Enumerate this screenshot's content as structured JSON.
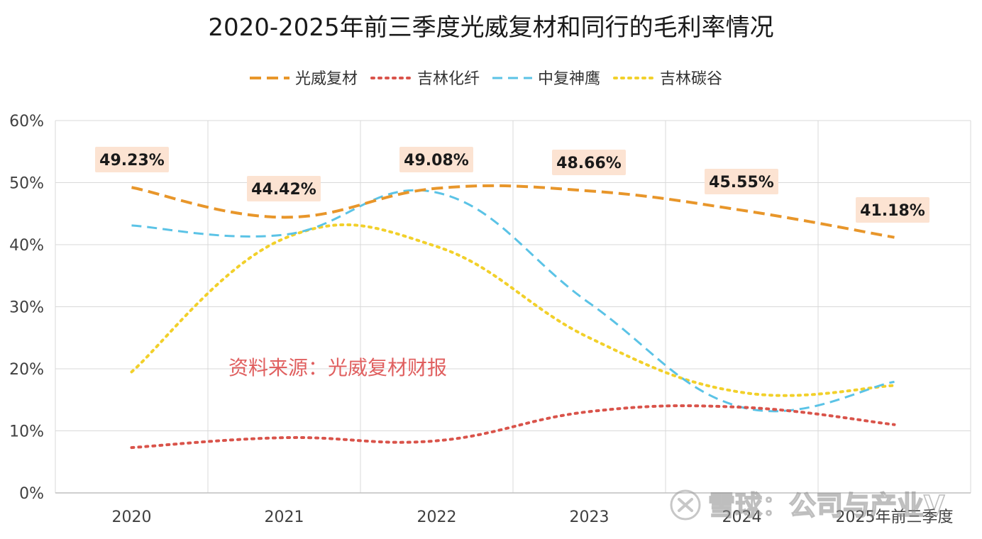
{
  "chart_data": {
    "type": "line",
    "title": "2020-2025年前三季度光威复材和同行的毛利率情况",
    "categories": [
      "2020",
      "2021",
      "2022",
      "2023",
      "2024",
      "2025年前三季度"
    ],
    "y_ticks": [
      "0%",
      "10%",
      "20%",
      "30%",
      "40%",
      "50%",
      "60%"
    ],
    "ylim": [
      0,
      60
    ],
    "xlabel": "",
    "ylabel": "",
    "grid": true,
    "legend_position": "top",
    "series": [
      {
        "name": "光威复材",
        "values": [
          49.23,
          44.42,
          49.08,
          48.66,
          45.55,
          41.18
        ],
        "color": "#E8962A",
        "dash": "long",
        "labels": [
          "49.23%",
          "44.42%",
          "49.08%",
          "48.66%",
          "45.55%",
          "41.18%"
        ]
      },
      {
        "name": "吉林化纤",
        "values": [
          7.3,
          8.9,
          8.4,
          13.1,
          13.8,
          11.0
        ],
        "color": "#D9534A",
        "dash": "dot"
      },
      {
        "name": "中复神鹰",
        "values": [
          43.1,
          41.6,
          48.4,
          30.6,
          13.8,
          17.9
        ],
        "color": "#5BC3E6",
        "dash": "dash"
      },
      {
        "name": "吉林碳谷",
        "values": [
          19.5,
          41.0,
          39.7,
          25.0,
          16.2,
          17.3
        ],
        "color": "#F2D02A",
        "dash": "dot"
      }
    ],
    "annotation": "资料来源：光威复材财报"
  },
  "watermark": "雪球：公司与产业V"
}
